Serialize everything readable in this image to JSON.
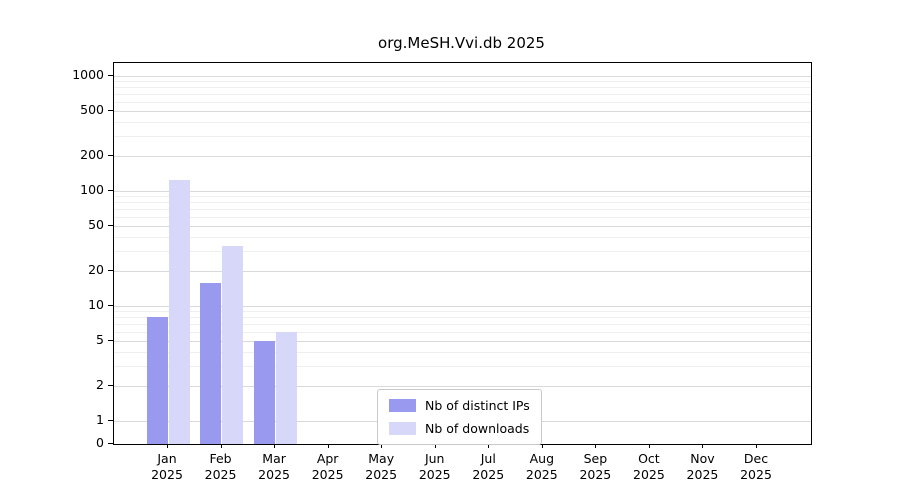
{
  "title": "org.MeSH.Vvi.db 2025",
  "chart_data": {
    "type": "bar",
    "title": "org.MeSH.Vvi.db 2025",
    "categories": [
      "Jan",
      "Feb",
      "Mar",
      "Apr",
      "May",
      "Jun",
      "Jul",
      "Aug",
      "Sep",
      "Oct",
      "Nov",
      "Dec"
    ],
    "year": "2025",
    "series": [
      {
        "name": "Nb of distinct IPs",
        "color": "#9999f0",
        "values": [
          8,
          16,
          5,
          0,
          0,
          0,
          0,
          0,
          0,
          0,
          0,
          0
        ]
      },
      {
        "name": "Nb of downloads",
        "color": "#d7d7fa",
        "values": [
          125,
          33,
          6,
          0,
          0,
          0,
          0,
          0,
          0,
          0,
          0,
          0
        ]
      }
    ],
    "y_ticks": [
      0,
      1,
      2,
      5,
      10,
      20,
      50,
      100,
      200,
      500,
      1000
    ],
    "y_scale": "log",
    "ylim": [
      0,
      1000
    ],
    "xlabel": "",
    "ylabel": "",
    "grid": true,
    "legend_position": "bottom-center"
  },
  "colors": {
    "axis": "#000000",
    "grid_major": "#d9d9d9",
    "grid_minor": "#efefef",
    "background": "#ffffff"
  }
}
